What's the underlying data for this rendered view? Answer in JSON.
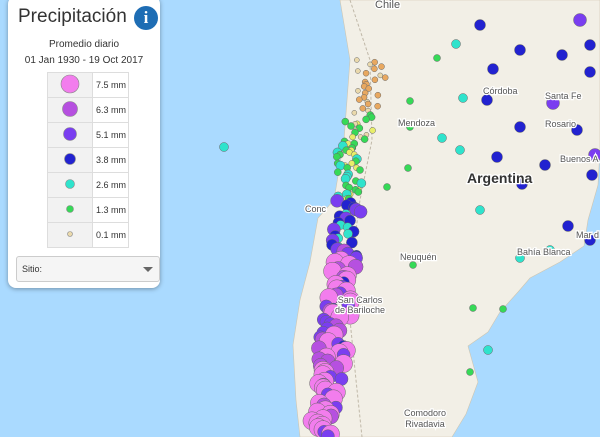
{
  "panel": {
    "title": "Precipitación",
    "info_icon": "i",
    "subtitle": "Promedio diario",
    "date_range": "01 Jan 1930 - 19 Oct 2017",
    "legend": [
      {
        "label": "7.5 mm",
        "color": "#f27ded"
      },
      {
        "label": "6.3 mm",
        "color": "#b650e0"
      },
      {
        "label": "5.1 mm",
        "color": "#7a3ef0"
      },
      {
        "label": "3.8 mm",
        "color": "#2222d0"
      },
      {
        "label": "2.6 mm",
        "color": "#2fe3cc"
      },
      {
        "label": "1.3 mm",
        "color": "#36d957"
      },
      {
        "label": "0.1 mm",
        "color": "#ead9ac"
      }
    ],
    "dropdown": "Sitio:"
  },
  "map": {
    "labels": [
      "Chile",
      "Córdoba",
      "Santa Fe",
      "Rosario",
      "Buenos A",
      "Mendoza",
      "Argentina",
      "Conc",
      "Neuquén",
      "Bahía Blanca",
      "Mar d",
      "San Carlos",
      "de Bariloche",
      "Comodoro",
      "Rivadavia"
    ]
  }
}
